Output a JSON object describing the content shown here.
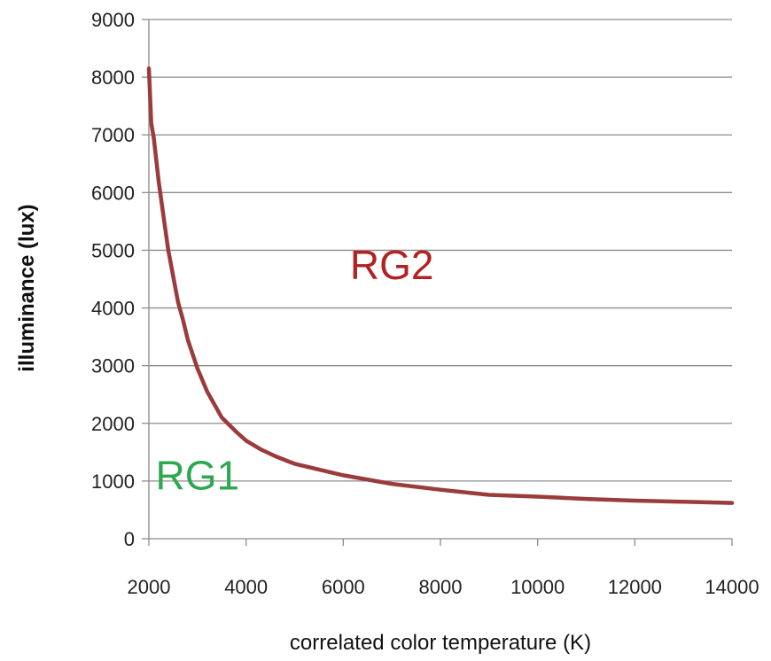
{
  "chart_data": {
    "type": "line",
    "title": "",
    "xlabel": "correlated color temperature (K)",
    "ylabel": "illuminance (lux)",
    "xlim": [
      2000,
      14000
    ],
    "ylim": [
      0,
      9000
    ],
    "x_ticks": [
      2000,
      4000,
      6000,
      8000,
      10000,
      12000,
      14000
    ],
    "y_ticks": [
      0,
      1000,
      2000,
      3000,
      4000,
      5000,
      6000,
      7000,
      8000,
      9000
    ],
    "grid": "horizontal",
    "series": [
      {
        "color": "#9b3b3b",
        "x": [
          2000,
          2050,
          2100,
          2200,
          2300,
          2400,
          2500,
          2600,
          2700,
          2800,
          3000,
          3200,
          3500,
          3800,
          4000,
          4300,
          4600,
          4900,
          5000,
          5500,
          6000,
          7000,
          8000,
          9000,
          10000,
          11000,
          12000,
          13000,
          14000
        ],
        "values": [
          8150,
          7200,
          6950,
          6200,
          5600,
          5000,
          4550,
          4100,
          3800,
          3450,
          2950,
          2550,
          2100,
          1850,
          1700,
          1550,
          1430,
          1330,
          1300,
          1200,
          1100,
          950,
          850,
          760,
          730,
          690,
          660,
          640,
          620
        ]
      }
    ],
    "annotations": [
      {
        "text": "RG2",
        "x": 7000,
        "y": 4500,
        "color": "#b22222"
      },
      {
        "text": "RG1",
        "x": 3000,
        "y": 850,
        "color": "#2ea84f"
      }
    ]
  }
}
